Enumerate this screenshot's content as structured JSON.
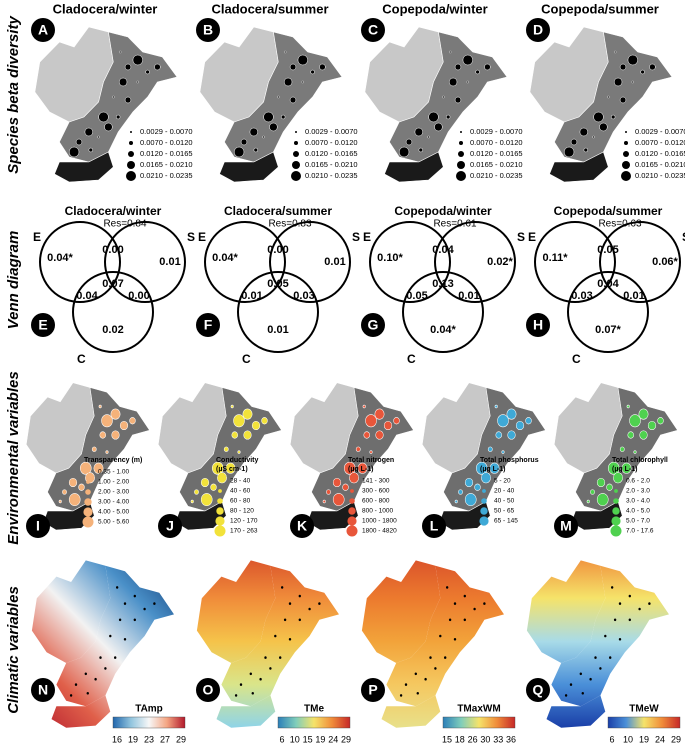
{
  "beta_diversity": {
    "label": "Species beta diversity",
    "legend": [
      "0.0029 - 0.0070",
      "0.0070 - 0.0120",
      "0.0120 - 0.0165",
      "0.0165 - 0.0210",
      "0.0210 - 0.0235"
    ],
    "panels": [
      {
        "letter": "A",
        "title": "Cladocera/winter"
      },
      {
        "letter": "B",
        "title": "Cladocera/summer"
      },
      {
        "letter": "C",
        "title": "Copepoda/winter"
      },
      {
        "letter": "D",
        "title": "Copepoda/summer"
      }
    ]
  },
  "venn": {
    "label": "Venn diagram",
    "circle_labels": [
      "E",
      "S",
      "C"
    ],
    "panels": [
      {
        "letter": "E",
        "title": "Cladocera/winter",
        "res": "Res=0.84",
        "regions": {
          "e": "0.04*",
          "s": "0.01",
          "c": "0.02",
          "es": "0.00",
          "ec": "0.04",
          "sc": "0.00",
          "esc": "0.07"
        }
      },
      {
        "letter": "F",
        "title": "Cladocera/summer",
        "res": "Res=0.83",
        "regions": {
          "e": "0.04*",
          "s": "0.01",
          "c": "0.01",
          "es": "0.00",
          "ec": "0.01",
          "sc": "0.03",
          "esc": "0.05"
        }
      },
      {
        "letter": "G",
        "title": "Copepoda/winter",
        "res": "Res=0.61",
        "regions": {
          "e": "0.10*",
          "s": "0.02*",
          "c": "0.04*",
          "es": "0.04",
          "ec": "0.05",
          "sc": "0.01",
          "esc": "0.13"
        }
      },
      {
        "letter": "H",
        "title": "Copepoda/summer",
        "res": "Res=0.63",
        "regions": {
          "e": "0.11*",
          "s": "0.06*",
          "c": "0.07*",
          "es": "0.05",
          "ec": "0.03",
          "sc": "0.01",
          "esc": "0.04"
        }
      }
    ]
  },
  "environmental": {
    "label": "Environmental variables",
    "panels": [
      {
        "letter": "I",
        "title": "Transparency (m)",
        "color": "#f5b27a",
        "legend": [
          "0.35 - 1.00",
          "1.00 - 2.00",
          "2.00 - 3.00",
          "3.00 - 4.00",
          "4.00 - 5.00",
          "5.00 - 5.60"
        ]
      },
      {
        "letter": "J",
        "title": "Conductivity",
        "unit": "(µS cm-1)",
        "color": "#f2e23a",
        "legend": [
          "28 - 40",
          "40 - 60",
          "60 - 80",
          "80 - 120",
          "120 - 170",
          "170 - 263"
        ]
      },
      {
        "letter": "K",
        "title": "Total nitrogen",
        "unit": "(µg L-1)",
        "color": "#e8563a",
        "legend": [
          "141 - 300",
          "300 - 600",
          "600 - 800",
          "800 - 1000",
          "1000 - 1800",
          "1800 - 4820"
        ]
      },
      {
        "letter": "L",
        "title": "Total phosphorus",
        "unit": "(µg L-1)",
        "color": "#3fa9d6",
        "legend": [
          "5 - 20",
          "20 - 40",
          "40 - 50",
          "50 - 65",
          "65 - 145"
        ]
      },
      {
        "letter": "M",
        "title": "Total chlorophyll",
        "unit": "(µg L-1)",
        "color": "#4fd14f",
        "legend": [
          "0.6 - 2.0",
          "2.0 - 3.0",
          "3.0 - 4.0",
          "4.0 - 5.0",
          "5.0 - 7.0",
          "7.0 - 17.6"
        ]
      }
    ]
  },
  "climatic": {
    "label": "Climatic variables",
    "panels": [
      {
        "letter": "N",
        "title": "TAmp",
        "ticks": [
          16,
          19,
          23,
          27,
          29
        ]
      },
      {
        "letter": "O",
        "title": "TMe",
        "ticks": [
          6,
          10,
          15,
          19,
          24,
          29
        ]
      },
      {
        "letter": "P",
        "title": "TMaxWM",
        "ticks": [
          15,
          18,
          26,
          30,
          33,
          36
        ]
      },
      {
        "letter": "Q",
        "title": "TMeW",
        "ticks": [
          6,
          10,
          19,
          24,
          29
        ]
      }
    ]
  }
}
